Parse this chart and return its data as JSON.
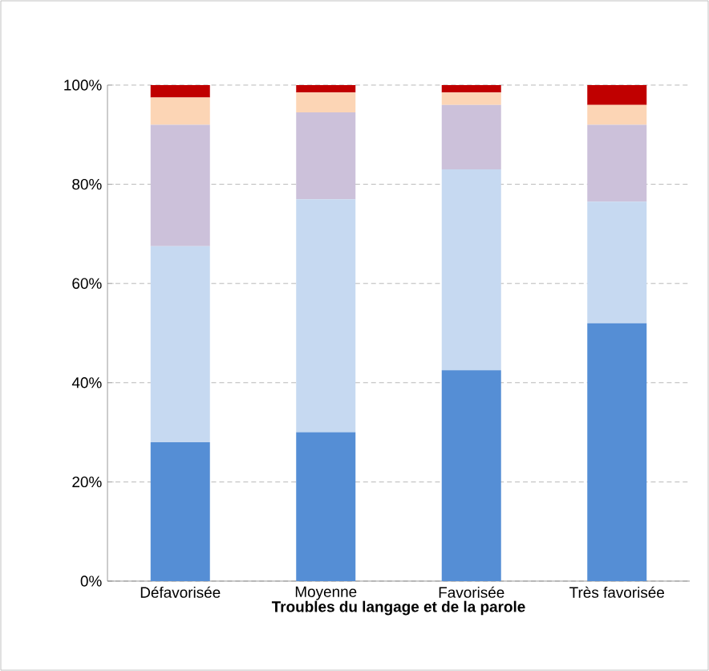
{
  "chart_data": {
    "type": "bar",
    "stacked": true,
    "xlabel": "Troubles du langage et de la parole",
    "categories": [
      "Défavorisée",
      "Moyenne",
      "Favorisée",
      "Très favorisée"
    ],
    "series": [
      {
        "color": "#558ed5",
        "values": [
          28,
          30,
          42.5,
          52
        ]
      },
      {
        "color": "#c6d9f1",
        "values": [
          39.5,
          47,
          40.5,
          24.5
        ]
      },
      {
        "color": "#ccc1da",
        "values": [
          24.5,
          17.5,
          13,
          15.5
        ]
      },
      {
        "color": "#fcd5b5",
        "values": [
          5.5,
          4,
          2.5,
          4
        ]
      },
      {
        "color": "#c00000",
        "values": [
          2.5,
          1.5,
          1.5,
          4
        ]
      }
    ],
    "ylim": [
      0,
      100
    ],
    "yticks": [
      {
        "value": 0,
        "label": "0%"
      },
      {
        "value": 20,
        "label": "20%"
      },
      {
        "value": 40,
        "label": "40%"
      },
      {
        "value": 60,
        "label": "60%"
      },
      {
        "value": 80,
        "label": "80%"
      },
      {
        "value": 100,
        "label": "100%"
      }
    ],
    "grid": "y"
  }
}
